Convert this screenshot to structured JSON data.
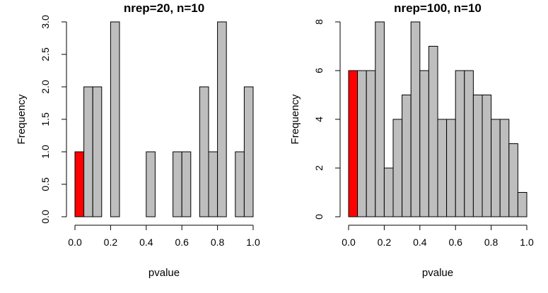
{
  "chart_data": [
    {
      "type": "bar",
      "title": "nrep=20, n=10",
      "xlabel": "pvalue",
      "ylabel": "Frequency",
      "xlim": [
        0,
        1
      ],
      "ylim": [
        0,
        3
      ],
      "bin_width": 0.05,
      "x_ticks": [
        "0.0",
        "0.2",
        "0.4",
        "0.6",
        "0.8",
        "1.0"
      ],
      "y_ticks": [
        "0.0",
        "0.5",
        "1.0",
        "1.5",
        "2.0",
        "2.5",
        "3.0"
      ],
      "bins": [
        0.0,
        0.05,
        0.1,
        0.15,
        0.2,
        0.25,
        0.3,
        0.35,
        0.4,
        0.45,
        0.5,
        0.55,
        0.6,
        0.65,
        0.7,
        0.75,
        0.8,
        0.85,
        0.9,
        0.95
      ],
      "values": [
        1,
        2,
        2,
        0,
        3,
        0,
        0,
        0,
        1,
        0,
        0,
        1,
        1,
        0,
        2,
        1,
        3,
        0,
        1,
        2
      ],
      "highlight_bins": [
        0
      ],
      "highlight_color": "#ff0000",
      "bar_color": "#bebebe"
    },
    {
      "type": "bar",
      "title": "nrep=100, n=10",
      "xlabel": "pvalue",
      "ylabel": "Frequency",
      "xlim": [
        0,
        1
      ],
      "ylim": [
        0,
        8
      ],
      "bin_width": 0.05,
      "x_ticks": [
        "0.0",
        "0.2",
        "0.4",
        "0.6",
        "0.8",
        "1.0"
      ],
      "y_ticks": [
        "0",
        "2",
        "4",
        "6",
        "8"
      ],
      "bins": [
        0.0,
        0.05,
        0.1,
        0.15,
        0.2,
        0.25,
        0.3,
        0.35,
        0.4,
        0.45,
        0.5,
        0.55,
        0.6,
        0.65,
        0.7,
        0.75,
        0.8,
        0.85,
        0.9,
        0.95
      ],
      "values": [
        6,
        6,
        6,
        8,
        2,
        4,
        5,
        8,
        6,
        7,
        4,
        4,
        6,
        6,
        5,
        5,
        4,
        4,
        3,
        1
      ],
      "highlight_bins": [
        0
      ],
      "highlight_color": "#ff0000",
      "bar_color": "#bebebe"
    }
  ]
}
